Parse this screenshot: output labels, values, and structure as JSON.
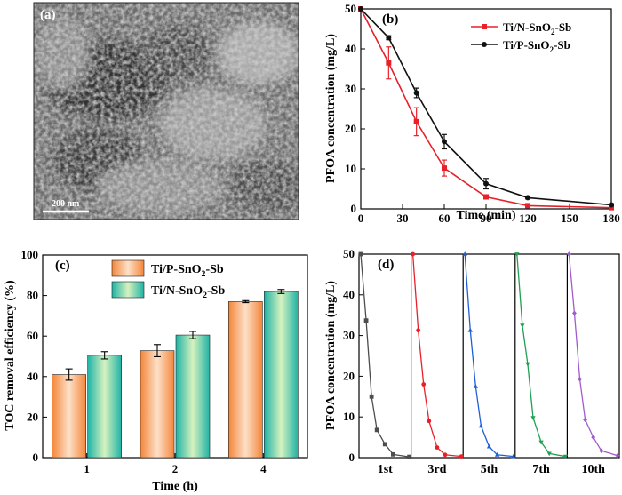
{
  "figure": {
    "panel_a": {
      "label": "(a)",
      "scale_bar": "200 nm",
      "description_colors": {
        "bg": "#5a5a5a",
        "dark": "#2e2e2e",
        "light": "#b8b8b8"
      }
    }
  },
  "chart_data": [
    {
      "panel": "(b)",
      "type": "line",
      "title": "",
      "xlabel": "Time (min)",
      "ylabel": "PFOA concentration (mg/L)",
      "xlim": [
        0,
        180
      ],
      "ylim": [
        0,
        50
      ],
      "xticks": [
        0,
        30,
        60,
        90,
        120,
        150,
        180
      ],
      "yticks": [
        0,
        10,
        20,
        30,
        40,
        50
      ],
      "legend_position": "top-right",
      "series": [
        {
          "name": "Ti/N-SnO2-Sb",
          "legend_main": "Ti/N-SnO",
          "legend_sub": "2",
          "legend_tail": "-Sb",
          "color": "#e8202a",
          "marker": "square",
          "x": [
            0,
            20,
            40,
            60,
            90,
            120,
            180
          ],
          "y": [
            50,
            36.5,
            21.8,
            10.2,
            3.0,
            0.8,
            0.3
          ],
          "err": [
            0,
            4.0,
            3.5,
            2.0,
            0.5,
            0.3,
            0.2
          ]
        },
        {
          "name": "Ti/P-SnO2-Sb",
          "legend_main": "Ti/P-SnO",
          "legend_sub": "2",
          "legend_tail": "-Sb",
          "color": "#111111",
          "marker": "circle",
          "x": [
            0,
            20,
            40,
            60,
            90,
            120,
            180
          ],
          "y": [
            50,
            42.8,
            29.0,
            16.8,
            6.3,
            2.8,
            1.0
          ],
          "err": [
            0,
            0.5,
            1.2,
            1.8,
            1.3,
            0.3,
            0.3
          ]
        }
      ]
    },
    {
      "panel": "(c)",
      "type": "bar",
      "title": "",
      "xlabel": "Time (h)",
      "ylabel": "TOC removal efficiency (%)",
      "categories": [
        "1",
        "2",
        "4"
      ],
      "ylim": [
        0,
        100
      ],
      "yticks": [
        0,
        20,
        40,
        60,
        80,
        100
      ],
      "legend_position": "top-left",
      "series": [
        {
          "name": "Ti/P-SnO2-Sb",
          "legend_main": "Ti/P-SnO",
          "legend_sub": "2",
          "legend_tail": "-Sb",
          "color_edge": "#f4863a",
          "color_center": "#fde0c8",
          "values": [
            41.0,
            52.8,
            77.0
          ],
          "err": [
            2.8,
            3.0,
            0.5
          ]
        },
        {
          "name": "Ti/N-SnO2-Sb",
          "legend_main": "Ti/N-SnO",
          "legend_sub": "2",
          "legend_tail": "-Sb",
          "color_edge": "#1fb3a6",
          "color_center": "#d6f2bf",
          "values": [
            50.5,
            60.5,
            82.0
          ],
          "err": [
            1.8,
            1.8,
            1.0
          ]
        }
      ]
    },
    {
      "panel": "(d)",
      "type": "line",
      "title": "",
      "xlabel": "",
      "ylabel": "PFOA concentration (mg/L)",
      "ylim": [
        0,
        50
      ],
      "yticks": [
        0,
        10,
        20,
        30,
        40,
        50
      ],
      "x_minutes": [
        0,
        20,
        40,
        60,
        90,
        120,
        180
      ],
      "cycles": [
        {
          "label": "1st",
          "color": "#4d4d4d",
          "marker": "square",
          "y": [
            50,
            33.7,
            15.0,
            6.8,
            3.3,
            0.8,
            0.2
          ]
        },
        {
          "label": "3rd",
          "color": "#e8202a",
          "marker": "circle",
          "y": [
            50,
            31.3,
            18.0,
            9.0,
            2.5,
            0.7,
            0.3
          ]
        },
        {
          "label": "5th",
          "color": "#1f5fd6",
          "marker": "triangle-up",
          "y": [
            50,
            31.3,
            17.5,
            7.8,
            2.7,
            0.7,
            0.3
          ]
        },
        {
          "label": "7th",
          "color": "#1fa052",
          "marker": "triangle-down",
          "y": [
            50,
            32.5,
            23.0,
            9.8,
            3.8,
            1.0,
            0.3
          ]
        },
        {
          "label": "10th",
          "color": "#a05ccc",
          "marker": "diamond",
          "y": [
            50,
            35.5,
            19.3,
            9.3,
            5.0,
            1.7,
            0.5
          ]
        }
      ]
    }
  ]
}
